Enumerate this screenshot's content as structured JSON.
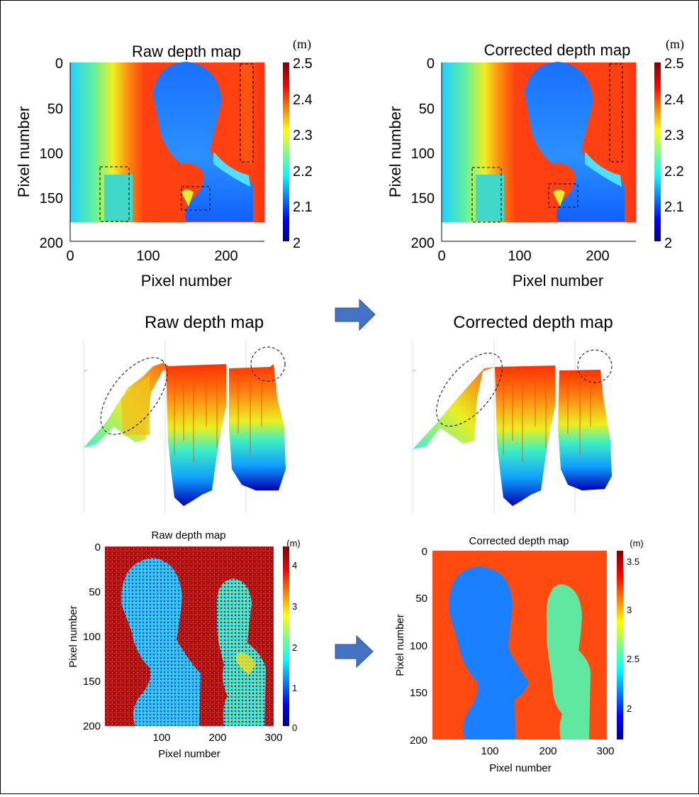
{
  "colors": {
    "jet": [
      "#00008f",
      "#0000ff",
      "#0080ff",
      "#00ffff",
      "#80ff80",
      "#ffff00",
      "#ff8000",
      "#ff0000",
      "#800000"
    ],
    "arrow_fill": "#4472c4",
    "arrow_stroke": "#2f528f",
    "border": "#000000"
  },
  "panels": [
    {
      "id": "top-left",
      "title": "Raw depth map",
      "ylabel": "Pixel number",
      "xlabel": "Pixel number",
      "xticks": [
        "0",
        "100",
        "200"
      ],
      "yticks": [
        "0",
        "50",
        "100",
        "150",
        "200"
      ],
      "unit": "(m)",
      "colorbar_ticks": [
        "2.5",
        "2.4",
        "2.3",
        "2.2",
        "2.1",
        "2"
      ]
    },
    {
      "id": "top-right",
      "title": "Corrected depth map",
      "ylabel": "Pixel number",
      "xlabel": "Pixel number",
      "xticks": [
        "0",
        "100",
        "200"
      ],
      "yticks": [
        "0",
        "50",
        "100",
        "150",
        "200"
      ],
      "unit": "(m)",
      "colorbar_ticks": [
        "2.5",
        "2.4",
        "2.3",
        "2.2",
        "2.1",
        "2"
      ]
    },
    {
      "id": "mid-left",
      "title": "Raw depth map"
    },
    {
      "id": "mid-right",
      "title": "Corrected depth map"
    },
    {
      "id": "bottom-left",
      "title": "Raw depth map",
      "ylabel": "Pixel number",
      "xlabel": "Pixel number",
      "xticks": [
        "100",
        "200",
        "300"
      ],
      "yticks": [
        "0",
        "50",
        "100",
        "150",
        "200"
      ],
      "unit": "(m)",
      "colorbar_ticks": [
        "4",
        "3",
        "2",
        "1",
        "0"
      ]
    },
    {
      "id": "bottom-right",
      "title": "Corrected depth map",
      "ylabel": "Pixel number",
      "xlabel": "Pixel number",
      "xticks": [
        "100",
        "200",
        "300"
      ],
      "yticks": [
        "0",
        "50",
        "100",
        "150",
        "200"
      ],
      "unit": "(m)",
      "colorbar_ticks": [
        "3.5",
        "3",
        "2.5",
        "2"
      ]
    }
  ]
}
